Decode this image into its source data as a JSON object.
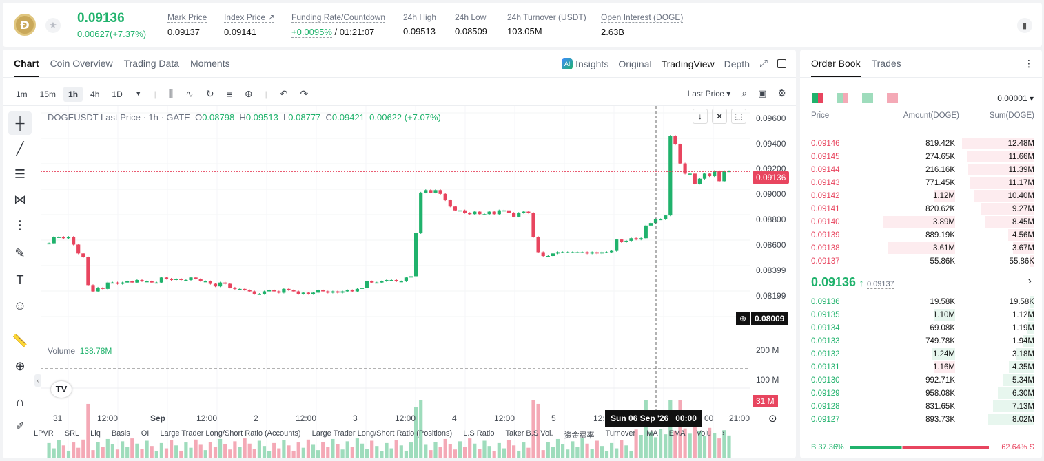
{
  "ticker": {
    "last_price": "0.09136",
    "change": "0.00627(+7.37%)",
    "stats": [
      {
        "k": "Mark Price",
        "v": "0.09137"
      },
      {
        "k": "Index Price ↗",
        "v": "0.09141"
      },
      {
        "k": "Funding Rate/Countdown",
        "v1": "+0.0095%",
        "v2": " / 01:21:07"
      },
      {
        "k": "24h High",
        "v": "0.09513"
      },
      {
        "k": "24h Low",
        "v": "0.08509"
      },
      {
        "k": "24h Turnover (USDT)",
        "v": "103.05M"
      },
      {
        "k": "Open Interest (DOGE)",
        "v": "2.63B"
      }
    ]
  },
  "chart_tabs": [
    "Chart",
    "Coin Overview",
    "Trading Data",
    "Moments"
  ],
  "view_tabs": [
    "Insights",
    "Original",
    "TradingView",
    "Depth"
  ],
  "intervals": [
    "1m",
    "15m",
    "1h",
    "4h",
    "1D"
  ],
  "last_price_select": "Last Price",
  "legend": {
    "title": "DOGEUSDT Last Price · 1h · GATE",
    "o": "0.08798",
    "h": "0.09513",
    "l": "0.08777",
    "c": "0.09421",
    "chg": "0.00622 (+7.07%)"
  },
  "y_ticks": [
    "0.09600",
    "0.09400",
    "0.09200",
    "0.09000",
    "0.08800",
    "0.08600",
    "0.08399",
    "0.08199"
  ],
  "price_tag": "0.09136",
  "cross_tag": "0.08009",
  "volume": {
    "label": "Volume",
    "value": "138.78M",
    "ticks": [
      "200 M",
      "100 M"
    ],
    "tag": "31 M"
  },
  "x_ticks": [
    "31",
    "12:00",
    "Sep",
    "12:00",
    "2",
    "12:00",
    "3",
    "12:00",
    "4",
    "12:00",
    "5",
    "12:",
    "00",
    "21:00"
  ],
  "time_tag": "Sun 06 Sep '26   00:00",
  "indicators": [
    "LPVR",
    "SRL",
    "Liq",
    "Basis",
    "OI",
    "Large Trader Long/Short Ratio (Accounts)",
    "Large Trader Long/Short Ratio (Positions)",
    "L.S Ratio",
    "Taker B.S Vol.",
    "资金费率",
    "Turnover",
    "MA",
    "EMA",
    "Volu"
  ],
  "book": {
    "tabs": [
      "Order Book",
      "Trades"
    ],
    "precision": "0.00001",
    "headers": [
      "Price",
      "Amount(DOGE)",
      "Sum(DOGE)"
    ],
    "asks": [
      [
        "0.09146",
        "819.42K",
        "12.48M"
      ],
      [
        "0.09145",
        "274.65K",
        "11.66M"
      ],
      [
        "0.09144",
        "216.16K",
        "11.39M"
      ],
      [
        "0.09143",
        "771.45K",
        "11.17M"
      ],
      [
        "0.09142",
        "1.12M",
        "10.40M"
      ],
      [
        "0.09141",
        "820.62K",
        "9.27M"
      ],
      [
        "0.09140",
        "3.89M",
        "8.45M"
      ],
      [
        "0.09139",
        "889.19K",
        "4.56M"
      ],
      [
        "0.09138",
        "3.61M",
        "3.67M"
      ],
      [
        "0.09137",
        "55.86K",
        "55.86K"
      ]
    ],
    "mid": "0.09136",
    "mid_mark": "0.09137",
    "bids": [
      [
        "0.09136",
        "19.58K",
        "19.58K"
      ],
      [
        "0.09135",
        "1.10M",
        "1.12M"
      ],
      [
        "0.09134",
        "69.08K",
        "1.19M"
      ],
      [
        "0.09133",
        "749.78K",
        "1.94M"
      ],
      [
        "0.09132",
        "1.24M",
        "3.18M"
      ],
      [
        "0.09131",
        "1.16M",
        "4.35M"
      ],
      [
        "0.09130",
        "992.71K",
        "5.34M"
      ],
      [
        "0.09129",
        "958.08K",
        "6.30M"
      ],
      [
        "0.09128",
        "831.65K",
        "7.13M"
      ],
      [
        "0.09127",
        "893.73K",
        "8.02M"
      ]
    ],
    "buy_ratio": "37.36%",
    "sell_ratio": "62.64%",
    "buy_label": "B",
    "sell_label": "S"
  },
  "colors": {
    "up": "#20b26c",
    "down": "#e8455f"
  }
}
